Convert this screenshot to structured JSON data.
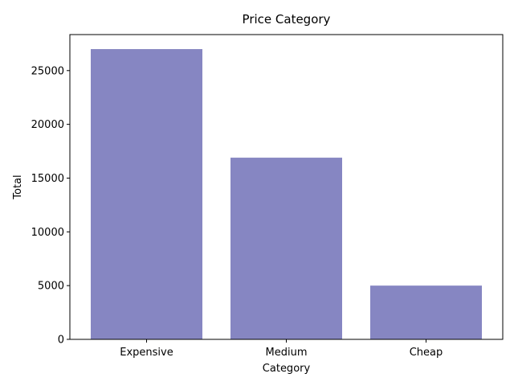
{
  "chart_data": {
    "type": "bar",
    "title": "Price Category",
    "xlabel": "Category",
    "ylabel": "Total",
    "categories": [
      "Expensive",
      "Medium",
      "Cheap"
    ],
    "values": [
      27000,
      16900,
      5000
    ],
    "ylim": [
      0,
      28350
    ],
    "yticks": [
      0,
      5000,
      10000,
      15000,
      20000,
      25000
    ],
    "ytick_labels": [
      "0",
      "5000",
      "10000",
      "15000",
      "20000",
      "25000"
    ],
    "bar_color": "#8686c2",
    "grid": false,
    "legend": "none"
  }
}
